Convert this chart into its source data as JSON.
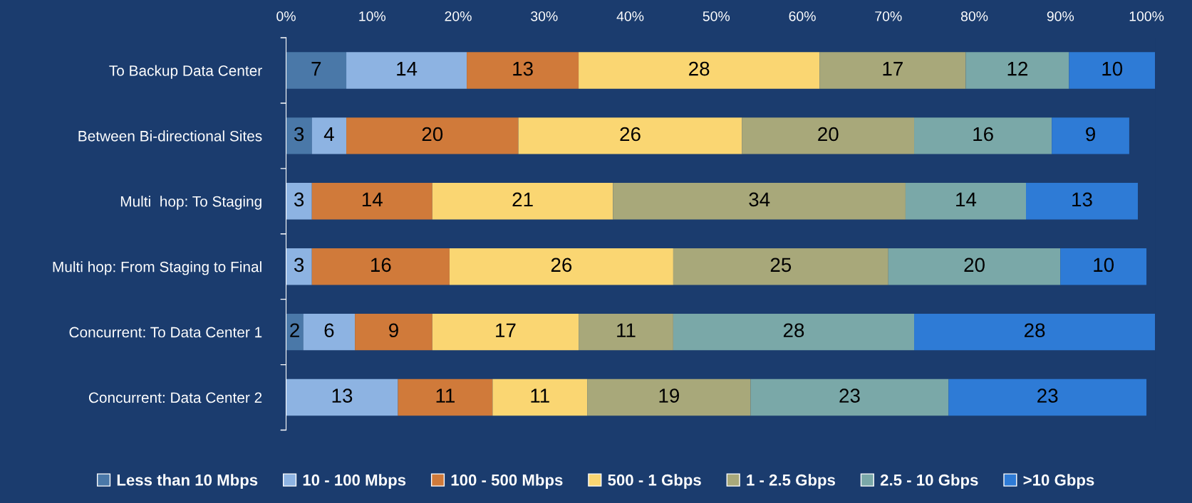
{
  "chart_data": {
    "type": "bar",
    "orientation": "horizontal",
    "stacked": true,
    "categories": [
      "To Backup Data Center",
      "Between Bi-directional Sites",
      "Multi  hop: To Staging",
      "Multi hop: From Staging to Final",
      "Concurrent: To Data Center 1",
      "Concurrent: Data Center 2"
    ],
    "series": [
      {
        "name": "Less than 10 Mbps",
        "color": "#4a78a8",
        "values": [
          7,
          3,
          null,
          null,
          2,
          null
        ]
      },
      {
        "name": "10 - 100 Mbps",
        "color": "#8db3e2",
        "values": [
          14,
          4,
          3,
          3,
          6,
          13
        ]
      },
      {
        "name": "100 - 500 Mbps",
        "color": "#d07a3a",
        "values": [
          13,
          20,
          14,
          16,
          9,
          11
        ]
      },
      {
        "name": "500 - 1 Gbps",
        "color": "#fad672",
        "values": [
          28,
          26,
          21,
          26,
          17,
          11
        ]
      },
      {
        "name": "1 - 2.5 Gbps",
        "color": "#a8a87a",
        "values": [
          17,
          20,
          34,
          25,
          11,
          19
        ]
      },
      {
        "name": "2.5 - 10 Gbps",
        "color": "#7aa8a8",
        "values": [
          12,
          16,
          14,
          20,
          28,
          23
        ]
      },
      {
        "name": ">10 Gbps",
        "color": "#2e7bd6",
        "values": [
          10,
          9,
          13,
          10,
          28,
          23
        ]
      }
    ],
    "xlim": [
      0,
      101
    ],
    "xticks": [
      {
        "value": 0,
        "label": "0%"
      },
      {
        "value": 10,
        "label": "10%"
      },
      {
        "value": 20,
        "label": "20%"
      },
      {
        "value": 30,
        "label": "30%"
      },
      {
        "value": 40,
        "label": "40%"
      },
      {
        "value": 50,
        "label": "50%"
      },
      {
        "value": 60,
        "label": "60%"
      },
      {
        "value": 70,
        "label": "70%"
      },
      {
        "value": 80,
        "label": "80%"
      },
      {
        "value": 90,
        "label": "90%"
      },
      {
        "value": 100,
        "label": "100%"
      }
    ],
    "grid": false,
    "legend": "bottom",
    "data_labels": true
  }
}
